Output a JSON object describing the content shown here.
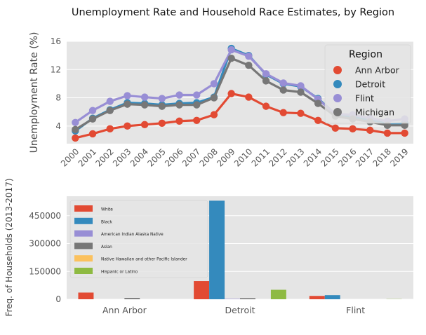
{
  "figure": {
    "title": "Unemployment Rate and Household Race Estimates, by Region"
  },
  "chart_data": [
    {
      "type": "line",
      "title": "Unemployment Rate and Household Race Estimates, by Region",
      "xlabel": "",
      "ylabel": "Unemployment Rate (%)",
      "x": [
        "2000",
        "2001",
        "2002",
        "2003",
        "2004",
        "2005",
        "2006",
        "2007",
        "2008",
        "2009",
        "2010",
        "2011",
        "2012",
        "2013",
        "2014",
        "2015",
        "2016",
        "2017",
        "2018",
        "2019"
      ],
      "ylim": [
        1.5,
        16
      ],
      "yticks": [
        4,
        8,
        12,
        16
      ],
      "grid": true,
      "legend_title": "Region",
      "legend_position": "top-right",
      "series": [
        {
          "name": "Ann Arbor",
          "color": "#E24A33",
          "values": [
            2.3,
            2.9,
            3.6,
            4.0,
            4.2,
            4.4,
            4.7,
            4.8,
            5.6,
            8.6,
            8.1,
            6.8,
            5.9,
            5.8,
            4.8,
            3.7,
            3.6,
            3.4,
            3.0,
            3.0
          ]
        },
        {
          "name": "Detroit",
          "color": "#348ABD",
          "values": [
            3.3,
            5.1,
            6.3,
            7.3,
            7.2,
            7.0,
            7.2,
            7.3,
            8.1,
            15.0,
            14.0,
            11.3,
            10.0,
            9.6,
            7.9,
            5.7,
            5.3,
            4.9,
            4.3,
            4.4
          ]
        },
        {
          "name": "Flint",
          "color": "#988ED5",
          "values": [
            4.5,
            6.2,
            7.5,
            8.3,
            8.1,
            7.9,
            8.4,
            8.4,
            10.0,
            14.8,
            13.9,
            11.4,
            10.1,
            9.7,
            7.8,
            5.7,
            5.6,
            5.1,
            4.7,
            5.0
          ]
        },
        {
          "name": "Michigan",
          "color": "#777777",
          "values": [
            3.5,
            5.0,
            6.2,
            7.1,
            7.0,
            6.8,
            7.0,
            7.0,
            8.0,
            13.6,
            12.6,
            10.4,
            9.1,
            8.8,
            7.2,
            5.4,
            5.0,
            4.6,
            4.1,
            4.1
          ]
        }
      ]
    },
    {
      "type": "bar",
      "title": "",
      "xlabel": "",
      "ylabel": "Freq. of Households (2013-2017)",
      "categories": [
        "Ann Arbor",
        "Detroit",
        "Flint"
      ],
      "ylim": [
        0,
        555000
      ],
      "yticks": [
        0,
        150000,
        300000,
        450000
      ],
      "grid": true,
      "legend_position": "top-left",
      "series": [
        {
          "name": "White",
          "color": "#E24A33",
          "values": [
            36000,
            98000,
            18000
          ]
        },
        {
          "name": "Black",
          "color": "#348ABD",
          "values": [
            0,
            531000,
            22000
          ]
        },
        {
          "name": "American Indian Alaska Native",
          "color": "#988ED5",
          "values": [
            0,
            2000,
            0
          ]
        },
        {
          "name": "Asian",
          "color": "#777777",
          "values": [
            7000,
            6000,
            0
          ]
        },
        {
          "name": "Native Hawaiian and other Pacific Islander",
          "color": "#FBC15E",
          "values": [
            0,
            0,
            0
          ]
        },
        {
          "name": "Hispanic or Latino",
          "color": "#8EBA42",
          "values": [
            0,
            51000,
            1000
          ]
        }
      ]
    }
  ]
}
